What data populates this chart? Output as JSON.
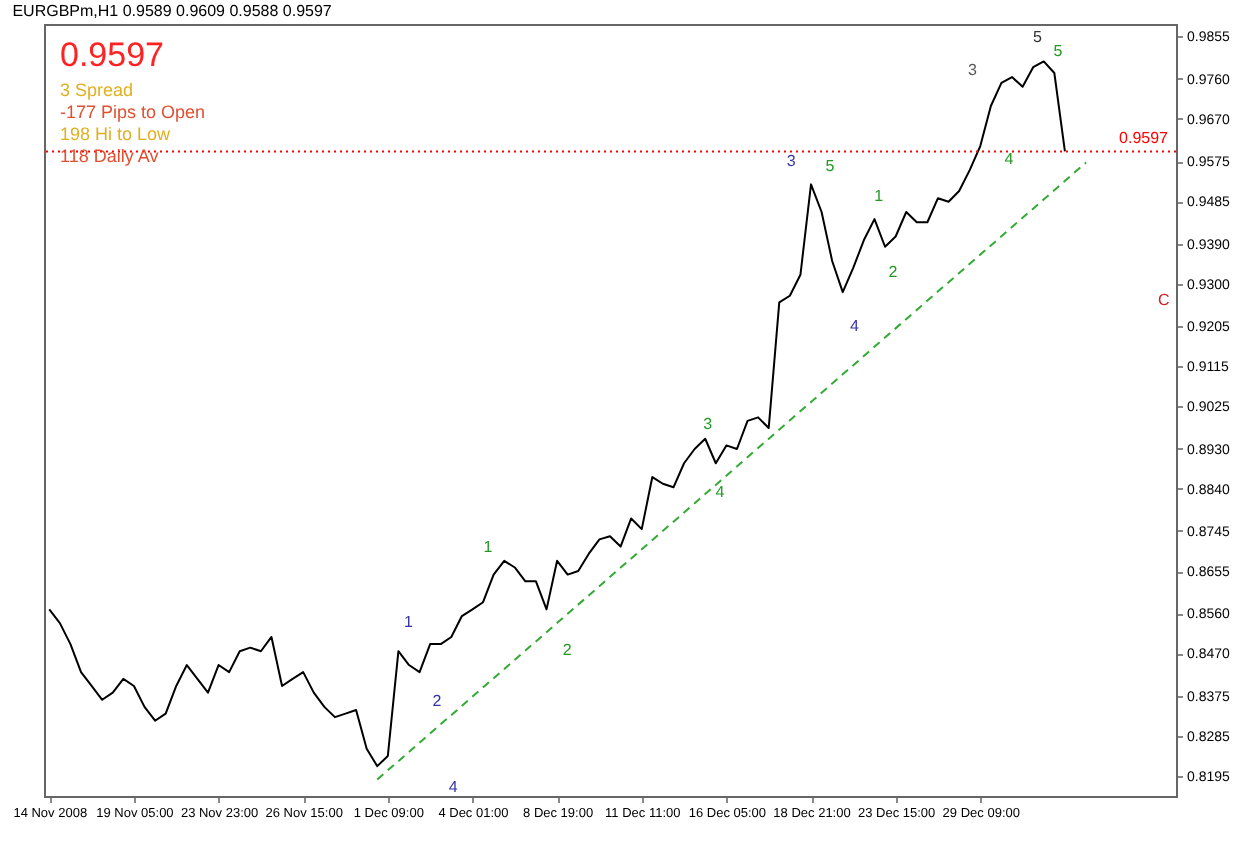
{
  "chart_data": {
    "type": "line",
    "title": "EURGBPm,H1  0.9589 0.9609 0.9588 0.9597",
    "annotations": [
      "0.9597",
      "3 Spread",
      "-177 Pips to Open",
      "198 Hi to Low",
      "118 Daily Av",
      "1",
      "2",
      "4",
      "1",
      "2",
      "3",
      "4",
      "3",
      "5",
      "4",
      "1",
      "2",
      "3",
      "4",
      "5",
      "5",
      "C"
    ],
    "categories": [
      "14 Nov 2008",
      null,
      null,
      null,
      null,
      null,
      null,
      null,
      "19 Nov 05:00",
      null,
      null,
      null,
      null,
      null,
      null,
      null,
      "23 Nov 23:00",
      null,
      null,
      null,
      null,
      null,
      null,
      null,
      "26 Nov 15:00",
      null,
      null,
      null,
      null,
      null,
      null,
      null,
      "1 Dec 09:00",
      null,
      null,
      null,
      null,
      null,
      null,
      null,
      "4 Dec 01:00",
      null,
      null,
      null,
      null,
      null,
      null,
      null,
      "8 Dec 19:00",
      null,
      null,
      null,
      null,
      null,
      null,
      null,
      "11 Dec 11:00",
      null,
      null,
      null,
      null,
      null,
      null,
      null,
      "16 Dec 05:00",
      null,
      null,
      null,
      null,
      null,
      null,
      null,
      "18 Dec 21:00",
      null,
      null,
      null,
      null,
      null,
      null,
      null,
      "23 Dec 15:00",
      null,
      null,
      null,
      null,
      null,
      null,
      null,
      "29 Dec 09:00",
      null,
      null,
      null,
      null,
      null,
      null,
      null,
      null,
      null,
      null,
      null,
      null,
      null,
      null,
      null,
      null,
      null,
      null
    ],
    "series": [
      {
        "color": "#000000",
        "values": [
          0.8569,
          0.8538,
          0.8491,
          0.8428,
          0.8397,
          0.8366,
          0.8382,
          0.8413,
          0.8397,
          0.835,
          0.8319,
          0.8335,
          0.8397,
          0.8444,
          0.8413,
          0.8382,
          0.8444,
          0.8428,
          0.8475,
          0.8483,
          0.8475,
          0.8507,
          0.8397,
          0.8413,
          0.8428,
          0.8382,
          0.835,
          0.8327,
          0.8335,
          0.8343,
          0.8256,
          0.8217,
          0.824,
          0.8475,
          0.8444,
          0.8428,
          0.8491,
          0.8491,
          0.8507,
          0.8554,
          0.8569,
          0.8585,
          0.8647,
          0.8678,
          0.8663,
          0.8632,
          0.8632,
          0.8569,
          0.8678,
          0.8647,
          0.8655,
          0.8694,
          0.8726,
          0.8733,
          0.871,
          0.8773,
          0.8749,
          0.8866,
          0.8851,
          0.8843,
          0.8897,
          0.8929,
          0.8952,
          0.8897,
          0.8937,
          0.8929,
          0.8992,
          0.9,
          0.8976,
          0.9258,
          0.9273,
          0.932,
          0.9523,
          0.9461,
          0.9351,
          0.9281,
          0.9336,
          0.9398,
          0.9445,
          0.9383,
          0.9406,
          0.9461,
          0.9438,
          0.9438,
          0.9492,
          0.9484,
          0.9508,
          0.9555,
          0.9609,
          0.9699,
          0.9751,
          0.9764,
          0.9742,
          0.9786,
          0.9799,
          0.9773,
          0.9597,
          null,
          null,
          null,
          null,
          null,
          null,
          null,
          null,
          null,
          null
        ]
      },
      {
        "type": "line",
        "color": "#33aa33",
        "line_style": "dashed",
        "values": [
          null,
          null,
          null,
          null,
          null,
          null,
          null,
          null,
          null,
          null,
          null,
          null,
          null,
          null,
          null,
          null,
          null,
          null,
          null,
          null,
          null,
          null,
          null,
          null,
          null,
          null,
          null,
          null,
          null,
          null,
          null,
          0.8187,
          null,
          null,
          null,
          null,
          null,
          null,
          null,
          null,
          null,
          null,
          null,
          null,
          null,
          null,
          null,
          null,
          null,
          null,
          null,
          null,
          null,
          null,
          null,
          null,
          null,
          null,
          null,
          null,
          null,
          null,
          null,
          null,
          null,
          null,
          null,
          null,
          null,
          null,
          null,
          null,
          null,
          null,
          null,
          null,
          null,
          null,
          null,
          null,
          null,
          null,
          null,
          null,
          null,
          null,
          null,
          null,
          null,
          null,
          null,
          null,
          null,
          null,
          null,
          null,
          null,
          null,
          0.9572,
          null,
          null,
          null,
          null,
          null,
          null,
          null,
          null
        ]
      }
    ],
    "ylim": [
      0.815,
      0.9883
    ],
    "yticks": [
      {
        "value": 0.9855,
        "label": "0.9855"
      },
      {
        "value": 0.976,
        "label": "0.9760"
      },
      {
        "value": 0.967,
        "label": "0.9670"
      },
      {
        "value": 0.9575,
        "label": "0.9575"
      },
      {
        "value": 0.9485,
        "label": "0.9485"
      },
      {
        "value": 0.939,
        "label": "0.9390"
      },
      {
        "value": 0.93,
        "label": "0.9300"
      },
      {
        "value": 0.9205,
        "label": "0.9205"
      },
      {
        "value": 0.9115,
        "label": "0.9115"
      },
      {
        "value": 0.9025,
        "label": "0.9025"
      },
      {
        "value": 0.893,
        "label": "0.8930"
      },
      {
        "value": 0.884,
        "label": "0.8840"
      },
      {
        "value": 0.8745,
        "label": "0.8745"
      },
      {
        "value": 0.8655,
        "label": "0.8655"
      },
      {
        "value": 0.856,
        "label": "0.8560"
      },
      {
        "value": 0.847,
        "label": "0.8470"
      },
      {
        "value": 0.8375,
        "label": "0.8375"
      },
      {
        "value": 0.8285,
        "label": "0.8285"
      },
      {
        "value": 0.8195,
        "label": "0.8195"
      }
    ],
    "ref_lines": [
      {
        "axis": "y",
        "value": 0.9597,
        "label": "0.9597",
        "color": "#ff0000",
        "line_style": "dotted"
      }
    ]
  }
}
